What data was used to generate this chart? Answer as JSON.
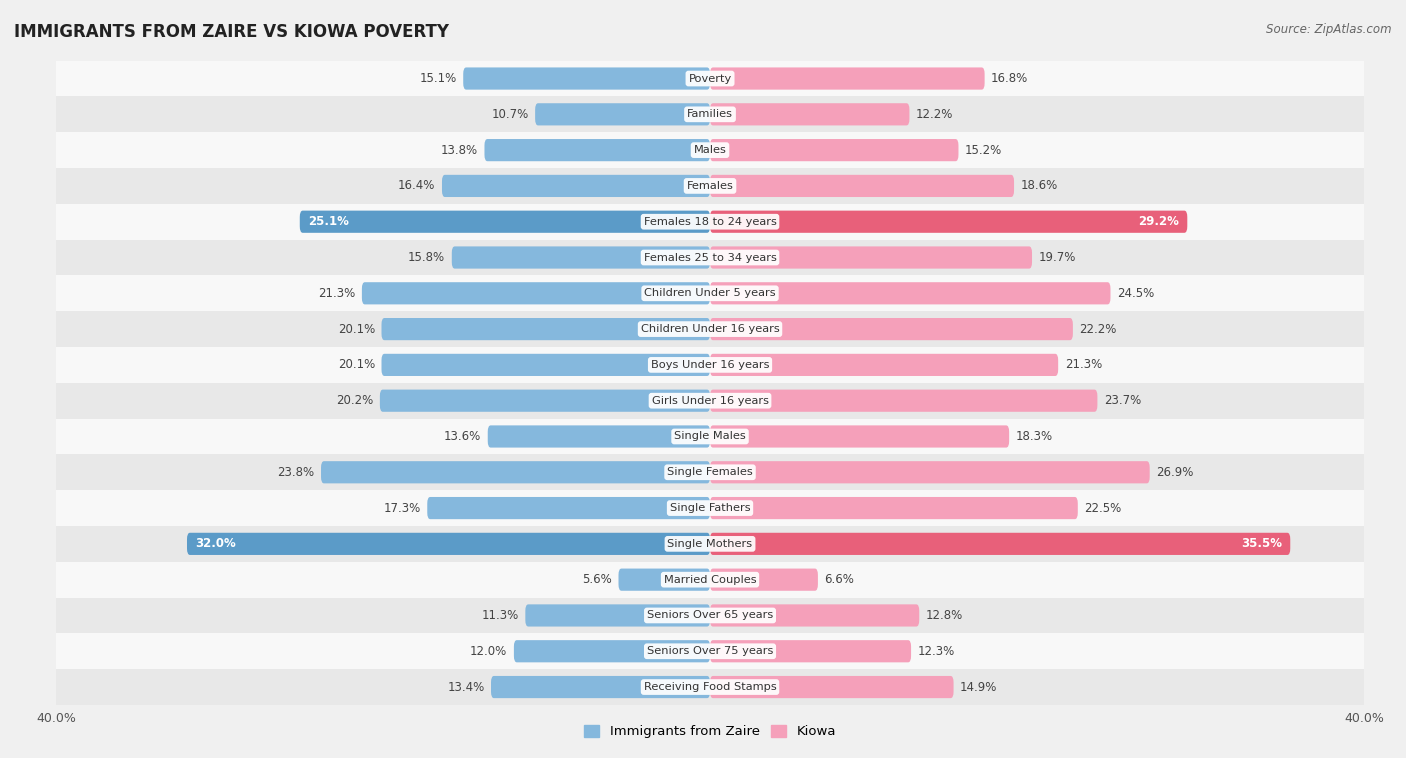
{
  "title": "IMMIGRANTS FROM ZAIRE VS KIOWA POVERTY",
  "source": "Source: ZipAtlas.com",
  "categories": [
    "Poverty",
    "Families",
    "Males",
    "Females",
    "Females 18 to 24 years",
    "Females 25 to 34 years",
    "Children Under 5 years",
    "Children Under 16 years",
    "Boys Under 16 years",
    "Girls Under 16 years",
    "Single Males",
    "Single Females",
    "Single Fathers",
    "Single Mothers",
    "Married Couples",
    "Seniors Over 65 years",
    "Seniors Over 75 years",
    "Receiving Food Stamps"
  ],
  "zaire_values": [
    15.1,
    10.7,
    13.8,
    16.4,
    25.1,
    15.8,
    21.3,
    20.1,
    20.1,
    20.2,
    13.6,
    23.8,
    17.3,
    32.0,
    5.6,
    11.3,
    12.0,
    13.4
  ],
  "kiowa_values": [
    16.8,
    12.2,
    15.2,
    18.6,
    29.2,
    19.7,
    24.5,
    22.2,
    21.3,
    23.7,
    18.3,
    26.9,
    22.5,
    35.5,
    6.6,
    12.8,
    12.3,
    14.9
  ],
  "zaire_color": "#85B8DD",
  "kiowa_color": "#F5A0BA",
  "highlight_indices": [
    4,
    13
  ],
  "highlight_zaire_color": "#5B9BC8",
  "highlight_kiowa_color": "#E8607A",
  "axis_max": 40.0,
  "bg_color": "#f0f0f0",
  "row_color_even": "#e8e8e8",
  "row_color_odd": "#f8f8f8",
  "legend_zaire": "Immigrants from Zaire",
  "legend_kiowa": "Kiowa"
}
